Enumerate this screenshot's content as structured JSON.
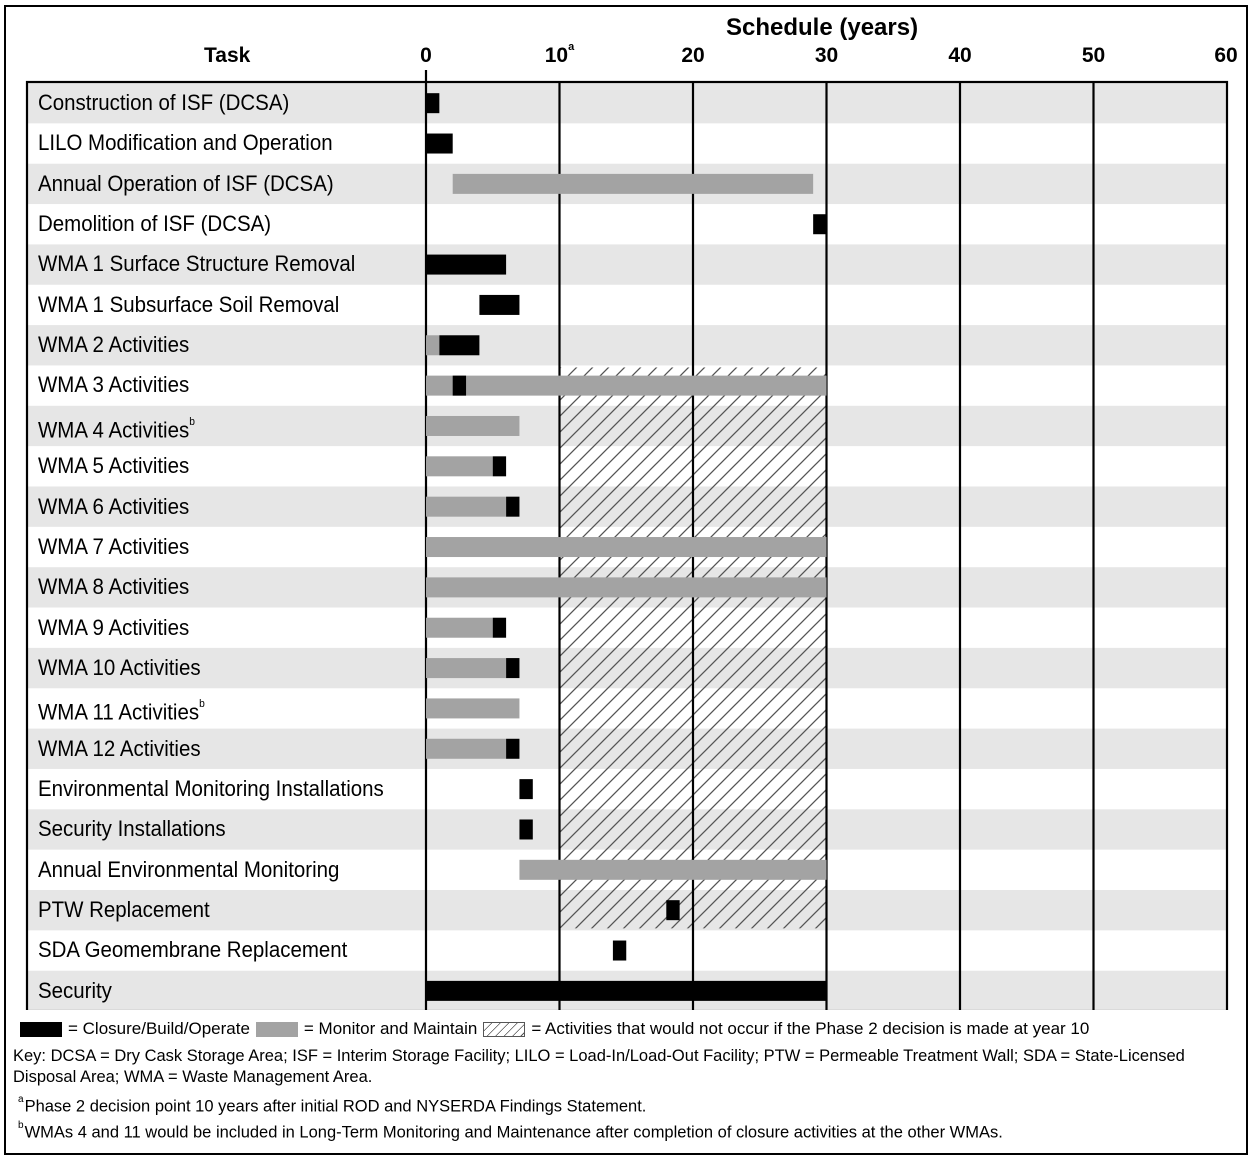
{
  "chart_data": {
    "type": "gantt",
    "title": "Schedule (years)",
    "task_header": "Task",
    "x_ticks": [
      {
        "value": 0,
        "label": "0"
      },
      {
        "value": 10,
        "label": "10",
        "superscript": "a"
      },
      {
        "value": 20,
        "label": "20"
      },
      {
        "value": 30,
        "label": "30"
      },
      {
        "value": 40,
        "label": "40"
      },
      {
        "value": 50,
        "label": "50"
      },
      {
        "value": 60,
        "label": "60"
      }
    ],
    "xlim": [
      0,
      60
    ],
    "hatched_range": [
      10,
      30
    ],
    "hatched_rows": [
      7,
      20
    ],
    "tasks": [
      {
        "label": "Construction of ISF (DCSA)",
        "sup": "",
        "bars": [
          {
            "start": 0,
            "end": 1,
            "kind": "closure"
          }
        ]
      },
      {
        "label": "LILO Modification and Operation",
        "sup": "",
        "bars": [
          {
            "start": 0,
            "end": 2,
            "kind": "closure"
          }
        ]
      },
      {
        "label": "Annual Operation of ISF (DCSA)",
        "sup": "",
        "bars": [
          {
            "start": 2,
            "end": 29,
            "kind": "monitor"
          }
        ]
      },
      {
        "label": "Demolition of ISF (DCSA)",
        "sup": "",
        "bars": [
          {
            "start": 29,
            "end": 30,
            "kind": "closure"
          }
        ]
      },
      {
        "label": "WMA 1 Surface Structure Removal",
        "sup": "",
        "bars": [
          {
            "start": 0,
            "end": 6,
            "kind": "closure"
          }
        ]
      },
      {
        "label": "WMA 1 Subsurface Soil Removal",
        "sup": "",
        "bars": [
          {
            "start": 4,
            "end": 7,
            "kind": "closure"
          }
        ]
      },
      {
        "label": "WMA 2 Activities",
        "sup": "",
        "bars": [
          {
            "start": 0,
            "end": 1,
            "kind": "monitor"
          },
          {
            "start": 1,
            "end": 4,
            "kind": "closure"
          }
        ]
      },
      {
        "label": "WMA 3 Activities",
        "sup": "",
        "bars": [
          {
            "start": 0,
            "end": 30,
            "kind": "monitor"
          },
          {
            "start": 2,
            "end": 3,
            "kind": "closure"
          }
        ]
      },
      {
        "label": "WMA 4 Activities",
        "sup": "b",
        "bars": [
          {
            "start": 0,
            "end": 7,
            "kind": "monitor"
          }
        ]
      },
      {
        "label": "WMA 5 Activities",
        "sup": "",
        "bars": [
          {
            "start": 0,
            "end": 5,
            "kind": "monitor"
          },
          {
            "start": 5,
            "end": 6,
            "kind": "closure"
          }
        ]
      },
      {
        "label": "WMA 6 Activities",
        "sup": "",
        "bars": [
          {
            "start": 0,
            "end": 6,
            "kind": "monitor"
          },
          {
            "start": 6,
            "end": 7,
            "kind": "closure"
          }
        ]
      },
      {
        "label": "WMA 7 Activities",
        "sup": "",
        "bars": [
          {
            "start": 0,
            "end": 30,
            "kind": "monitor"
          }
        ]
      },
      {
        "label": "WMA 8 Activities",
        "sup": "",
        "bars": [
          {
            "start": 0,
            "end": 30,
            "kind": "monitor"
          }
        ]
      },
      {
        "label": "WMA 9 Activities",
        "sup": "",
        "bars": [
          {
            "start": 0,
            "end": 5,
            "kind": "monitor"
          },
          {
            "start": 5,
            "end": 6,
            "kind": "closure"
          }
        ]
      },
      {
        "label": "WMA 10 Activities",
        "sup": "",
        "bars": [
          {
            "start": 0,
            "end": 6,
            "kind": "monitor"
          },
          {
            "start": 6,
            "end": 7,
            "kind": "closure"
          }
        ]
      },
      {
        "label": "WMA 11 Activities",
        "sup": "b",
        "bars": [
          {
            "start": 0,
            "end": 7,
            "kind": "monitor"
          }
        ]
      },
      {
        "label": "WMA 12 Activities",
        "sup": "",
        "bars": [
          {
            "start": 0,
            "end": 6,
            "kind": "monitor"
          },
          {
            "start": 6,
            "end": 7,
            "kind": "closure"
          }
        ]
      },
      {
        "label": "Environmental Monitoring Installations",
        "sup": "",
        "bars": [
          {
            "start": 7,
            "end": 8,
            "kind": "closure"
          }
        ]
      },
      {
        "label": "Security Installations",
        "sup": "",
        "bars": [
          {
            "start": 7,
            "end": 8,
            "kind": "closure"
          }
        ]
      },
      {
        "label": "Annual Environmental Monitoring",
        "sup": "",
        "bars": [
          {
            "start": 7,
            "end": 30,
            "kind": "monitor"
          }
        ]
      },
      {
        "label": "PTW Replacement",
        "sup": "",
        "bars": [
          {
            "start": 18,
            "end": 19,
            "kind": "closure"
          }
        ]
      },
      {
        "label": "SDA Geomembrane Replacement",
        "sup": "",
        "bars": [
          {
            "start": 14,
            "end": 15,
            "kind": "closure"
          }
        ]
      },
      {
        "label": "Security",
        "sup": "",
        "bars": [
          {
            "start": 0,
            "end": 30,
            "kind": "closure"
          }
        ]
      }
    ],
    "legend": [
      {
        "kind": "closure",
        "label": "= Closure/Build/Operate"
      },
      {
        "kind": "monitor",
        "label": "= Monitor and Maintain"
      },
      {
        "kind": "hatch",
        "label": "= Activities that would not occur if the Phase 2 decision is made at year 10"
      }
    ]
  },
  "key": "Key: DCSA = Dry Cask Storage Area; ISF = Interim Storage Facility; LILO = Load-In/Load-Out Facility; PTW = Permeable Treatment Wall; SDA = State-Licensed Disposal Area; WMA = Waste Management Area.",
  "footnotes": [
    {
      "mark": "a",
      "text": "Phase 2 decision point 10 years after initial ROD and NYSERDA Findings Statement."
    },
    {
      "mark": "b",
      "text": "WMAs 4 and 11 would be included in Long-Term Monitoring and Maintenance after completion of closure activities at the other WMAs."
    }
  ],
  "colors": {
    "closure": "#000000",
    "monitor": "#a3a3a3",
    "row_shade": "#e6e6e6",
    "hatch_line": "#555555"
  }
}
